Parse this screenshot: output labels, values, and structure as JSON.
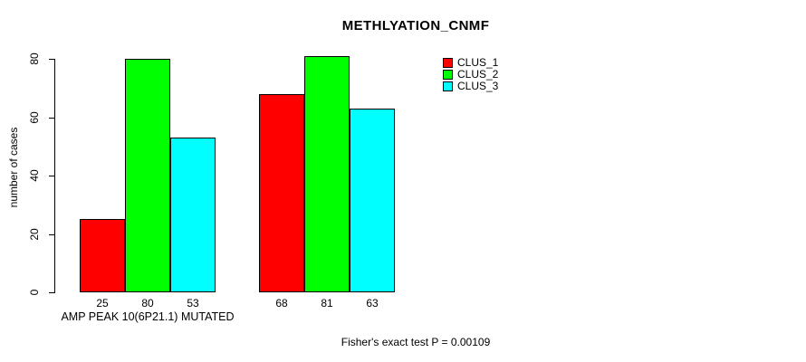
{
  "title": "METHLYATION_CNMF",
  "y_axis": {
    "label": "number of cases",
    "tick_labels": [
      "0",
      "20",
      "40",
      "60",
      "80"
    ]
  },
  "footer": "Fisher's exact test P = 0.00109",
  "legend": {
    "items": [
      {
        "label": "CLUS_1",
        "color": "#ff0000"
      },
      {
        "label": "CLUS_2",
        "color": "#00ff00"
      },
      {
        "label": "CLUS_3",
        "color": "#00ffff"
      }
    ]
  },
  "chart_data": {
    "type": "bar",
    "title": "METHLYATION_CNMF",
    "ylabel": "number of cases",
    "xlabel": "",
    "categories": [
      "AMP PEAK 10(6P21.1) MUTATED",
      ""
    ],
    "series": [
      {
        "name": "CLUS_1",
        "color": "#ff0000",
        "values": [
          25,
          68
        ]
      },
      {
        "name": "CLUS_2",
        "color": "#00ff00",
        "values": [
          80,
          81
        ]
      },
      {
        "name": "CLUS_3",
        "color": "#00ffff",
        "values": [
          53,
          63
        ]
      }
    ],
    "bar_value_labels": [
      [
        25,
        80,
        53
      ],
      [
        68,
        81,
        63
      ]
    ],
    "yticks": [
      0,
      20,
      40,
      60,
      80
    ],
    "ylim": [
      0,
      81
    ],
    "grid": false,
    "legend_position": "top-right",
    "annotation": "Fisher's exact test P = 0.00109",
    "bar_border_color": "#000000",
    "background_color": "#ffffff",
    "text_color": "#000000"
  }
}
